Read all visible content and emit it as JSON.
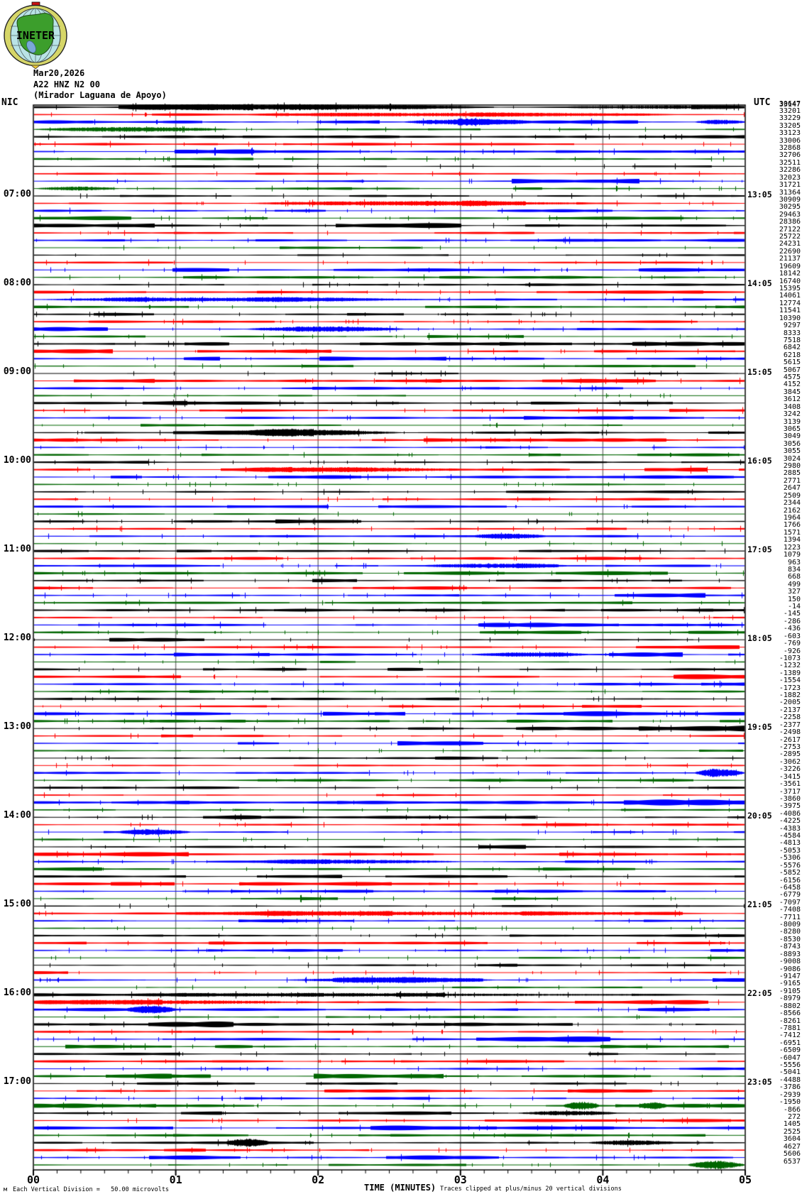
{
  "logo": {
    "text": "INETER"
  },
  "header": {
    "date": "Mar20,2026",
    "station": "A22 HNZ N2 00",
    "site": "(Mirador Laguana de Apoyo)"
  },
  "corner_labels": {
    "left": "NIC",
    "right": "UTC"
  },
  "footer": {
    "left_glyph": "м",
    "scale_note": "Each Vertical Division =   50.00 microvolts",
    "xlabel": "TIME (MINUTES)",
    "clip_note": "Traces clipped at plus/minus 20 vertical divisions"
  },
  "chart_data": {
    "type": "line",
    "variant": "helicorder-seismogram",
    "title": "A22 HNZ N2 00 (Mirador Laguana de Apoyo) Mar20,2026",
    "xlabel": "TIME (MINUTES)",
    "x_ticks": [
      "00",
      "01",
      "02",
      "03",
      "04",
      "05"
    ],
    "x_range_minutes": [
      0,
      5
    ],
    "minutes_per_row": 5,
    "rows": 144,
    "row_color_cycle": [
      "#000000",
      "#ff0000",
      "#0000ff",
      "#006600"
    ],
    "grid_color": "#808080",
    "amplitude_scale": "Each Vertical Division = 50.00 microvolts",
    "clipping": "Traces clipped at plus/minus 20 vertical divisions",
    "left_time_labels": [
      {
        "row": 12,
        "label": "07:00"
      },
      {
        "row": 24,
        "label": "08:00"
      },
      {
        "row": 36,
        "label": "09:00"
      },
      {
        "row": 48,
        "label": "10:00"
      },
      {
        "row": 60,
        "label": "11:00"
      },
      {
        "row": 72,
        "label": "12:00"
      },
      {
        "row": 84,
        "label": "13:00"
      },
      {
        "row": 96,
        "label": "14:00"
      },
      {
        "row": 108,
        "label": "15:00"
      },
      {
        "row": 120,
        "label": "16:00"
      },
      {
        "row": 132,
        "label": "17:00"
      }
    ],
    "right_time_labels": [
      {
        "row": 12,
        "label": "13:05"
      },
      {
        "row": 24,
        "label": "14:05"
      },
      {
        "row": 36,
        "label": "15:05"
      },
      {
        "row": 48,
        "label": "16:05"
      },
      {
        "row": 60,
        "label": "17:05"
      },
      {
        "row": 72,
        "label": "18:05"
      },
      {
        "row": 84,
        "label": "19:05"
      },
      {
        "row": 96,
        "label": "20:05"
      },
      {
        "row": 108,
        "label": "21:05"
      },
      {
        "row": 120,
        "label": "22:05"
      },
      {
        "row": 132,
        "label": "23:05"
      }
    ],
    "row0_overlap_value": "33147",
    "row_end_values": [
      30647,
      33201,
      33229,
      33205,
      33123,
      33006,
      32868,
      32706,
      32511,
      32286,
      32023,
      31721,
      31364,
      30909,
      30295,
      29463,
      28386,
      27122,
      25722,
      24231,
      22690,
      21137,
      19609,
      18142,
      16740,
      15395,
      14061,
      12774,
      11541,
      10390,
      9297,
      8333,
      7518,
      6842,
      6218,
      5615,
      5067,
      4575,
      4152,
      3845,
      3612,
      3408,
      3242,
      3139,
      3065,
      3049,
      3056,
      3055,
      3024,
      2980,
      2885,
      2771,
      2647,
      2509,
      2344,
      2162,
      1964,
      1766,
      1571,
      1394,
      1223,
      1079,
      963,
      834,
      668,
      499,
      327,
      150,
      -14,
      -145,
      -286,
      -436,
      -603,
      -769,
      -926,
      -1073,
      -1232,
      -1389,
      -1554,
      -1723,
      -1882,
      -2005,
      -2137,
      -2258,
      -2377,
      -2498,
      -2617,
      -2753,
      -2895,
      -3062,
      -3226,
      -3415,
      -3561,
      -3717,
      -3860,
      -3975,
      -4086,
      -4225,
      -4383,
      -4584,
      -4813,
      -5053,
      -5306,
      -5576,
      -5852,
      -6156,
      -6458,
      -6779,
      -7097,
      -7408,
      -7711,
      -8009,
      -8280,
      -8530,
      -8743,
      -8893,
      -9008,
      -9086,
      -9147,
      -9165,
      -9105,
      -8979,
      -8802,
      -8566,
      -8261,
      -7881,
      -7412,
      -6951,
      -6509,
      -6047,
      -5556,
      -5041,
      -4488,
      -3786,
      -2939,
      -1950,
      -866,
      272,
      1405,
      2525,
      3604,
      4627,
      5606,
      6537
    ],
    "events": [
      {
        "row": 0,
        "f0": 0.13,
        "f1": 0.62,
        "amp": 2.6
      },
      {
        "row": 0,
        "f0": 0.75,
        "f1": 1.0,
        "amp": 1.8
      },
      {
        "row": 1,
        "f0": 0.3,
        "f1": 0.9,
        "amp": 1.8
      },
      {
        "row": 2,
        "f0": 0.52,
        "f1": 0.7,
        "amp": 3.2
      },
      {
        "row": 2,
        "f0": 0.93,
        "f1": 1.0,
        "amp": 2.6
      },
      {
        "row": 3,
        "f0": 0.0,
        "f1": 0.28,
        "amp": 2.8
      },
      {
        "row": 11,
        "f0": 0.0,
        "f1": 0.12,
        "amp": 2.5
      },
      {
        "row": 13,
        "f0": 0.3,
        "f1": 0.78,
        "amp": 2.4
      },
      {
        "row": 26,
        "f0": 0.0,
        "f1": 0.55,
        "amp": 2.2
      },
      {
        "row": 30,
        "f0": 0.3,
        "f1": 0.52,
        "amp": 2.8
      },
      {
        "row": 44,
        "f0": 0.28,
        "f1": 0.52,
        "amp": 2.6
      },
      {
        "row": 49,
        "f0": 0.3,
        "f1": 0.6,
        "amp": 2.2
      },
      {
        "row": 58,
        "f0": 0.62,
        "f1": 0.72,
        "amp": 3.0
      },
      {
        "row": 62,
        "f0": 0.55,
        "f1": 0.75,
        "amp": 2.5
      },
      {
        "row": 74,
        "f0": 0.62,
        "f1": 0.78,
        "amp": 2.5
      },
      {
        "row": 90,
        "f0": 0.93,
        "f1": 1.0,
        "amp": 5.5
      },
      {
        "row": 98,
        "f0": 0.12,
        "f1": 0.22,
        "amp": 3.0
      },
      {
        "row": 102,
        "f0": 0.3,
        "f1": 0.6,
        "amp": 2.2
      },
      {
        "row": 109,
        "f0": 0.2,
        "f1": 0.9,
        "amp": 2.0
      },
      {
        "row": 118,
        "f0": 0.35,
        "f1": 0.65,
        "amp": 2.4
      },
      {
        "row": 120,
        "f0": 0.1,
        "f1": 0.9,
        "amp": 1.4
      },
      {
        "row": 121,
        "f0": 0.0,
        "f1": 0.4,
        "amp": 2.2
      },
      {
        "row": 122,
        "f0": 0.13,
        "f1": 0.2,
        "amp": 3.5
      },
      {
        "row": 135,
        "f0": 0.745,
        "f1": 0.795,
        "amp": 5.0
      },
      {
        "row": 135,
        "f0": 0.85,
        "f1": 0.89,
        "amp": 3.5
      },
      {
        "row": 136,
        "f0": 0.68,
        "f1": 0.82,
        "amp": 2.6
      },
      {
        "row": 140,
        "f0": 0.27,
        "f1": 0.33,
        "amp": 4.5
      },
      {
        "row": 140,
        "f0": 0.78,
        "f1": 0.9,
        "amp": 3.0
      },
      {
        "row": 143,
        "f0": 0.92,
        "f1": 1.0,
        "amp": 5.0
      }
    ]
  }
}
